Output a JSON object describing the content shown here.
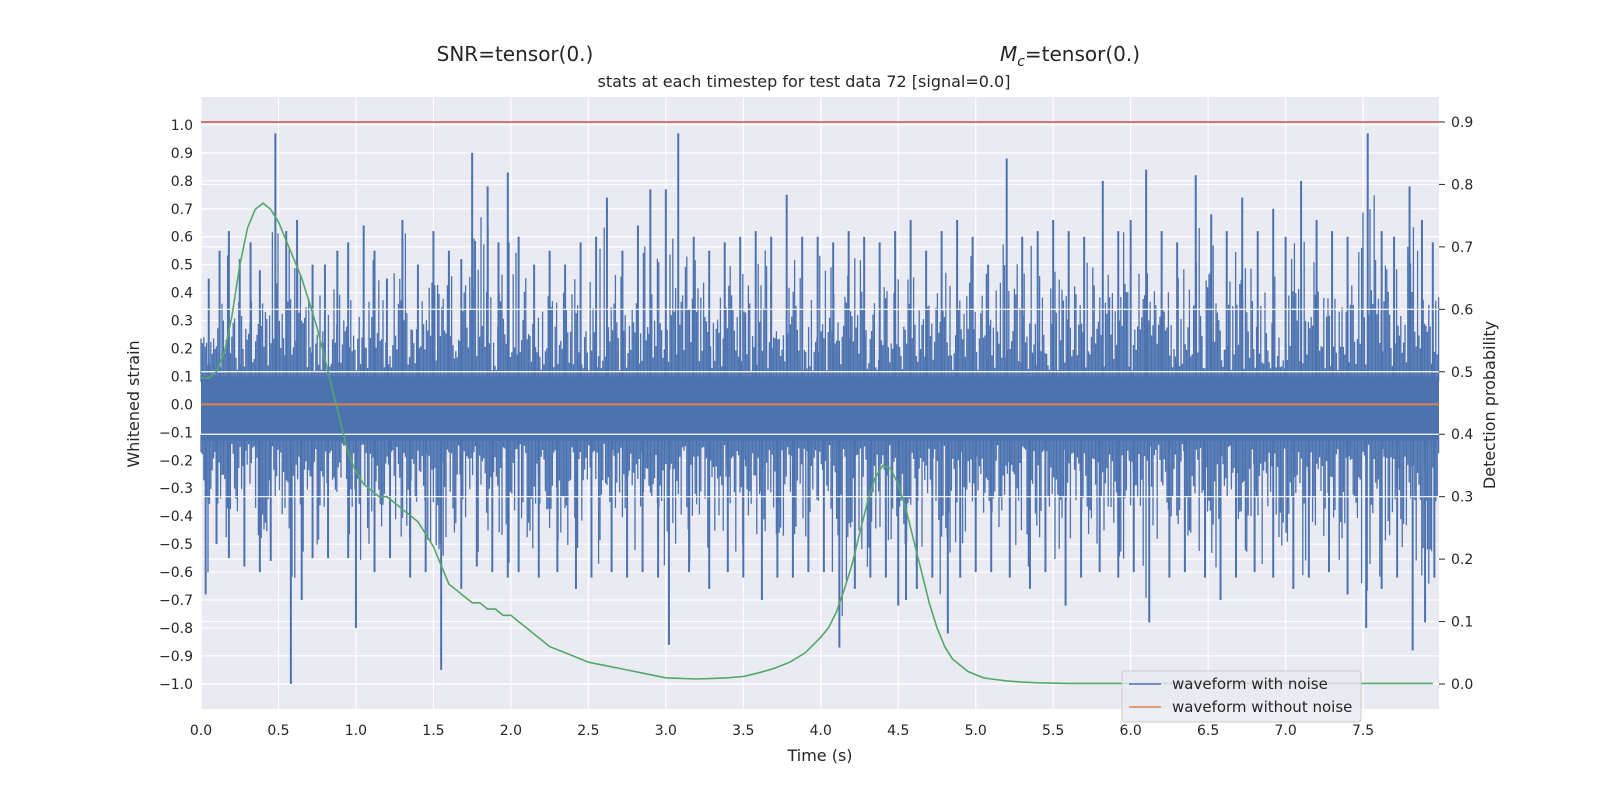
{
  "snr_label": "SNR=tensor(0.)",
  "mc_label": "=tensor(0.)",
  "mc_symbol": "M",
  "mc_sub": "c",
  "chart_data": {
    "type": "line",
    "title": "stats at each timestep for test data 72 [signal=0.0]",
    "xlabel": "Time (s)",
    "ylabel": "Whitened strain",
    "y2label": "Detection probability",
    "xlim": [
      0.0,
      7.99
    ],
    "ylim": [
      -1.09,
      1.1
    ],
    "y2lim": [
      -0.04,
      0.94
    ],
    "x_ticks": [
      "0.0",
      "0.5",
      "1.0",
      "1.5",
      "2.0",
      "2.5",
      "3.0",
      "3.5",
      "4.0",
      "4.5",
      "5.0",
      "5.5",
      "6.0",
      "6.5",
      "7.0",
      "7.5"
    ],
    "y_ticks": [
      "1.0",
      "0.9",
      "0.8",
      "0.7",
      "0.6",
      "0.5",
      "0.4",
      "0.3",
      "0.2",
      "0.1",
      "0.0",
      "−0.1",
      "−0.2",
      "−0.3",
      "−0.4",
      "−0.5",
      "−0.6",
      "−0.7",
      "−0.8",
      "−0.9",
      "−1.0"
    ],
    "y2_ticks": [
      "0.9",
      "0.8",
      "0.7",
      "0.6",
      "0.5",
      "0.4",
      "0.3",
      "0.2",
      "0.1",
      "0.0"
    ],
    "threshold": 0.9,
    "grid": true,
    "legend_position": "lower-right",
    "colors": {
      "noisy": "#4c72b0",
      "clean": "#dd8452",
      "prob": "#55a868",
      "threshold": "#c44e52",
      "axes_bg": "#eaeaf2",
      "grid": "#ffffff"
    },
    "series": [
      {
        "name": "waveform with noise",
        "axis": "left",
        "envelope": true,
        "band": [
          -0.13,
          0.1
        ],
        "peaks": [
          [
            0.05,
            0.45
          ],
          [
            0.12,
            0.55
          ],
          [
            0.18,
            0.62
          ],
          [
            0.25,
            0.52
          ],
          [
            0.32,
            0.58
          ],
          [
            0.38,
            0.48
          ],
          [
            0.48,
            0.97
          ],
          [
            0.55,
            0.62
          ],
          [
            0.62,
            0.66
          ],
          [
            0.72,
            0.5
          ],
          [
            0.8,
            0.5
          ],
          [
            0.88,
            0.55
          ],
          [
            0.95,
            0.58
          ],
          [
            1.05,
            0.64
          ],
          [
            1.12,
            0.55
          ],
          [
            1.2,
            0.45
          ],
          [
            1.3,
            0.66
          ],
          [
            1.4,
            0.5
          ],
          [
            1.5,
            0.62
          ],
          [
            1.6,
            0.55
          ],
          [
            1.68,
            0.52
          ],
          [
            1.75,
            0.9
          ],
          [
            1.85,
            0.78
          ],
          [
            1.92,
            0.58
          ],
          [
            1.98,
            0.83
          ],
          [
            2.05,
            0.6
          ],
          [
            2.15,
            0.5
          ],
          [
            2.25,
            0.55
          ],
          [
            2.35,
            0.5
          ],
          [
            2.45,
            0.58
          ],
          [
            2.55,
            0.6
          ],
          [
            2.62,
            0.74
          ],
          [
            2.72,
            0.55
          ],
          [
            2.82,
            0.64
          ],
          [
            2.9,
            0.77
          ],
          [
            3.0,
            0.77
          ],
          [
            3.08,
            0.97
          ],
          [
            3.18,
            0.6
          ],
          [
            3.28,
            0.55
          ],
          [
            3.38,
            0.58
          ],
          [
            3.48,
            0.6
          ],
          [
            3.58,
            0.62
          ],
          [
            3.68,
            0.6
          ],
          [
            3.78,
            0.75
          ],
          [
            3.88,
            0.6
          ],
          [
            3.98,
            0.6
          ],
          [
            4.08,
            0.58
          ],
          [
            4.18,
            0.62
          ],
          [
            4.28,
            0.6
          ],
          [
            4.38,
            0.58
          ],
          [
            4.48,
            0.62
          ],
          [
            4.58,
            0.66
          ],
          [
            4.68,
            0.55
          ],
          [
            4.78,
            0.62
          ],
          [
            4.88,
            0.66
          ],
          [
            4.98,
            0.6
          ],
          [
            5.08,
            0.5
          ],
          [
            5.2,
            0.88
          ],
          [
            5.3,
            0.6
          ],
          [
            5.4,
            0.62
          ],
          [
            5.5,
            0.66
          ],
          [
            5.6,
            0.62
          ],
          [
            5.7,
            0.6
          ],
          [
            5.82,
            0.8
          ],
          [
            5.92,
            0.62
          ],
          [
            6.0,
            0.66
          ],
          [
            6.1,
            0.84
          ],
          [
            6.2,
            0.62
          ],
          [
            6.3,
            0.58
          ],
          [
            6.42,
            0.82
          ],
          [
            6.52,
            0.68
          ],
          [
            6.62,
            0.62
          ],
          [
            6.72,
            0.74
          ],
          [
            6.82,
            0.62
          ],
          [
            6.92,
            0.7
          ],
          [
            7.0,
            0.6
          ],
          [
            7.1,
            0.8
          ],
          [
            7.2,
            0.66
          ],
          [
            7.3,
            0.62
          ],
          [
            7.4,
            0.6
          ],
          [
            7.53,
            0.97
          ],
          [
            7.62,
            0.62
          ],
          [
            7.7,
            0.6
          ],
          [
            7.8,
            0.78
          ],
          [
            7.88,
            0.66
          ],
          [
            7.95,
            0.58
          ]
        ],
        "troughs": [
          [
            0.03,
            -0.68
          ],
          [
            0.1,
            -0.5
          ],
          [
            0.18,
            -0.55
          ],
          [
            0.28,
            -0.58
          ],
          [
            0.38,
            -0.6
          ],
          [
            0.45,
            -0.56
          ],
          [
            0.58,
            -1.0
          ],
          [
            0.65,
            -0.7
          ],
          [
            0.72,
            -0.55
          ],
          [
            0.82,
            -0.55
          ],
          [
            0.95,
            -0.55
          ],
          [
            1.0,
            -0.8
          ],
          [
            1.12,
            -0.6
          ],
          [
            1.22,
            -0.55
          ],
          [
            1.35,
            -0.62
          ],
          [
            1.45,
            -0.6
          ],
          [
            1.55,
            -0.95
          ],
          [
            1.68,
            -0.66
          ],
          [
            1.78,
            -0.58
          ],
          [
            1.88,
            -0.6
          ],
          [
            1.98,
            -0.62
          ],
          [
            2.05,
            -0.6
          ],
          [
            2.18,
            -0.62
          ],
          [
            2.3,
            -0.6
          ],
          [
            2.42,
            -0.66
          ],
          [
            2.52,
            -0.62
          ],
          [
            2.65,
            -0.6
          ],
          [
            2.75,
            -0.62
          ],
          [
            2.85,
            -0.6
          ],
          [
            2.95,
            -0.62
          ],
          [
            3.02,
            -0.86
          ],
          [
            3.15,
            -0.6
          ],
          [
            3.28,
            -0.66
          ],
          [
            3.4,
            -0.6
          ],
          [
            3.5,
            -0.62
          ],
          [
            3.62,
            -0.7
          ],
          [
            3.72,
            -0.62
          ],
          [
            3.82,
            -0.62
          ],
          [
            3.92,
            -0.6
          ],
          [
            4.02,
            -0.6
          ],
          [
            4.12,
            -0.87
          ],
          [
            4.22,
            -0.66
          ],
          [
            4.32,
            -0.62
          ],
          [
            4.42,
            -0.62
          ],
          [
            4.5,
            -0.72
          ],
          [
            4.55,
            -0.7
          ],
          [
            4.62,
            -0.66
          ],
          [
            4.72,
            -0.62
          ],
          [
            4.82,
            -0.82
          ],
          [
            4.9,
            -0.62
          ],
          [
            5.0,
            -0.6
          ],
          [
            5.1,
            -0.6
          ],
          [
            5.22,
            -0.62
          ],
          [
            5.35,
            -0.66
          ],
          [
            5.45,
            -0.6
          ],
          [
            5.58,
            -0.72
          ],
          [
            5.68,
            -0.62
          ],
          [
            5.8,
            -0.6
          ],
          [
            5.92,
            -0.62
          ],
          [
            6.02,
            -0.6
          ],
          [
            6.12,
            -0.78
          ],
          [
            6.25,
            -0.62
          ],
          [
            6.35,
            -0.6
          ],
          [
            6.48,
            -0.62
          ],
          [
            6.58,
            -0.7
          ],
          [
            6.68,
            -0.62
          ],
          [
            6.8,
            -0.6
          ],
          [
            6.92,
            -0.62
          ],
          [
            7.05,
            -0.66
          ],
          [
            7.15,
            -0.62
          ],
          [
            7.28,
            -0.6
          ],
          [
            7.4,
            -0.68
          ],
          [
            7.52,
            -0.8
          ],
          [
            7.62,
            -0.66
          ],
          [
            7.72,
            -0.62
          ],
          [
            7.82,
            -0.88
          ],
          [
            7.9,
            -0.78
          ],
          [
            7.96,
            -0.62
          ]
        ]
      },
      {
        "name": "waveform without noise",
        "axis": "left",
        "x": [
          0.0,
          7.99
        ],
        "y": [
          0.0,
          0.0
        ]
      },
      {
        "name": "",
        "axis": "right",
        "x": [
          0.0,
          0.05,
          0.1,
          0.15,
          0.2,
          0.25,
          0.3,
          0.35,
          0.4,
          0.45,
          0.5,
          0.55,
          0.6,
          0.65,
          0.7,
          0.75,
          0.8,
          0.85,
          0.9,
          0.95,
          1.0,
          1.05,
          1.1,
          1.15,
          1.2,
          1.25,
          1.3,
          1.35,
          1.4,
          1.45,
          1.5,
          1.55,
          1.6,
          1.65,
          1.7,
          1.75,
          1.8,
          1.85,
          1.9,
          1.95,
          2.0,
          2.05,
          2.1,
          2.15,
          2.2,
          2.25,
          2.3,
          2.35,
          2.4,
          2.45,
          2.5,
          2.6,
          2.7,
          2.8,
          2.9,
          3.0,
          3.1,
          3.2,
          3.3,
          3.4,
          3.5,
          3.6,
          3.7,
          3.8,
          3.9,
          4.0,
          4.05,
          4.1,
          4.15,
          4.2,
          4.25,
          4.3,
          4.35,
          4.4,
          4.45,
          4.5,
          4.55,
          4.6,
          4.65,
          4.7,
          4.75,
          4.8,
          4.85,
          4.9,
          4.95,
          5.0,
          5.05,
          5.1,
          5.2,
          5.3,
          5.4,
          5.6,
          6.0,
          7.0,
          7.5,
          7.95
        ],
        "y": [
          0.49,
          0.49,
          0.5,
          0.53,
          0.59,
          0.67,
          0.73,
          0.76,
          0.77,
          0.76,
          0.74,
          0.71,
          0.68,
          0.65,
          0.61,
          0.57,
          0.52,
          0.47,
          0.42,
          0.37,
          0.34,
          0.32,
          0.31,
          0.3,
          0.3,
          0.29,
          0.28,
          0.27,
          0.26,
          0.24,
          0.22,
          0.19,
          0.16,
          0.15,
          0.14,
          0.13,
          0.13,
          0.12,
          0.12,
          0.11,
          0.11,
          0.1,
          0.09,
          0.08,
          0.07,
          0.06,
          0.055,
          0.05,
          0.045,
          0.04,
          0.035,
          0.03,
          0.025,
          0.02,
          0.015,
          0.01,
          0.009,
          0.008,
          0.009,
          0.01,
          0.012,
          0.018,
          0.025,
          0.035,
          0.05,
          0.075,
          0.09,
          0.115,
          0.15,
          0.19,
          0.24,
          0.29,
          0.33,
          0.35,
          0.345,
          0.32,
          0.28,
          0.23,
          0.18,
          0.13,
          0.09,
          0.06,
          0.04,
          0.03,
          0.02,
          0.015,
          0.01,
          0.008,
          0.005,
          0.003,
          0.002,
          0.001,
          0.001,
          0.001,
          0.001,
          0.001
        ]
      }
    ]
  }
}
